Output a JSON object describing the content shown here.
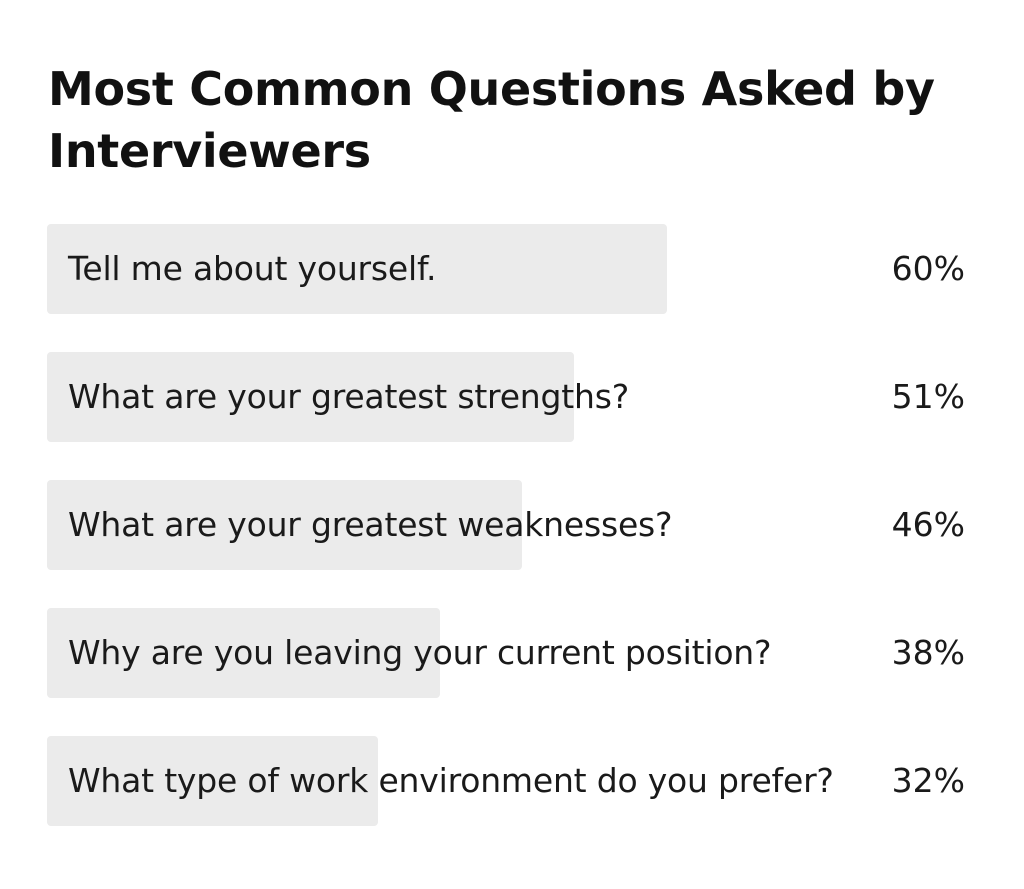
{
  "chart_data": {
    "type": "bar",
    "title": "Most Common Questions Asked by Interviewers",
    "categories": [
      "Tell me about yourself.",
      "What are your greatest strengths?",
      "What are your greatest weaknesses?",
      "Why are you leaving your current position?",
      "What type of work environment do you prefer?"
    ],
    "values": [
      60,
      51,
      46,
      38,
      32
    ],
    "value_labels": [
      "60%",
      "51%",
      "46%",
      "38%",
      "32%"
    ],
    "ylim": [
      0,
      100
    ],
    "bar_color": "#ebebeb",
    "text_color": "#1a1a1a"
  }
}
